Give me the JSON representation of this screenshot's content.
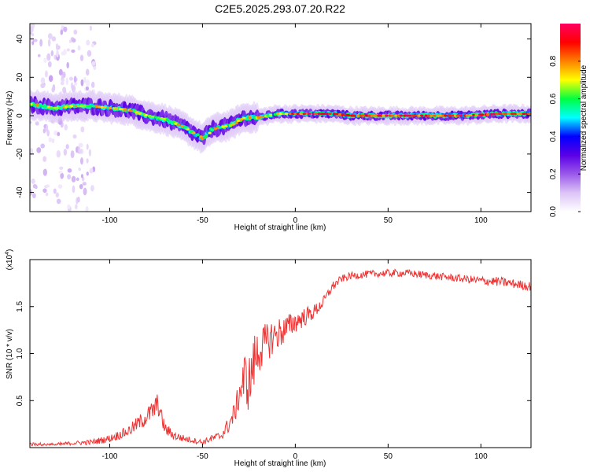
{
  "title": "C2E5.2025.293.07.20.R22",
  "chart_data": [
    {
      "type": "heatmap",
      "xlabel": "Height of straight line (km)",
      "ylabel": "Frequency (Hz)",
      "xlim": [
        -143,
        127
      ],
      "ylim": [
        -50,
        48
      ],
      "x_ticks": [
        -100,
        -50,
        0,
        50,
        100
      ],
      "x_tick_labels": [
        "-100",
        "-50",
        "0",
        "50",
        "100"
      ],
      "y_ticks": [
        -40,
        -20,
        0,
        20,
        40
      ],
      "y_tick_labels": [
        "-40",
        "-20",
        "0",
        "20",
        "40"
      ],
      "colorbar": {
        "label": "Normalized spectral amplitude",
        "range": [
          0,
          1
        ],
        "ticks": [
          0.0,
          0.2,
          0.4,
          0.6,
          0.8
        ],
        "tick_labels": [
          "0.0",
          "0.2",
          "0.4",
          "0.6",
          "0.8"
        ],
        "colormap": [
          "#ffffff",
          "#dcc4f6",
          "#9b59ea",
          "#5a00e6",
          "#0000ff",
          "#00ffff",
          "#00ff40",
          "#ffff00",
          "#ff8000",
          "#ff0000",
          "#ff0060"
        ]
      },
      "ridge": {
        "x": [
          -143,
          -130,
          -120,
          -110,
          -100,
          -90,
          -80,
          -70,
          -60,
          -50,
          -45,
          -40,
          -35,
          -30,
          -27,
          -20,
          -15,
          -10,
          -5,
          0,
          5,
          10,
          20,
          30,
          50,
          70,
          90,
          110,
          127
        ],
        "frequency": [
          6,
          4,
          5,
          5,
          4,
          3,
          0,
          -2,
          -6,
          -12,
          -7,
          -6,
          -5,
          -2,
          -1,
          -1,
          0,
          1,
          1,
          1,
          1,
          1,
          1,
          0,
          0,
          0,
          0,
          1,
          1
        ]
      }
    },
    {
      "type": "line",
      "xlabel": "Height of straight line (km)",
      "ylabel": "SNR (10 * v/v)",
      "multiplier": "(x10",
      "multiplier_exp": "4",
      "multiplier_close": ")",
      "xlim": [
        -143,
        127
      ],
      "ylim": [
        0,
        2.0
      ],
      "x_ticks": [
        -100,
        -50,
        0,
        50,
        100
      ],
      "x_tick_labels": [
        "-100",
        "-50",
        "0",
        "50",
        "100"
      ],
      "y_ticks": [
        0.5,
        1.0,
        1.5
      ],
      "y_tick_labels": [
        "0.5",
        "1.0",
        "1.5"
      ],
      "series": [
        {
          "color": "#ee3333",
          "x": [
            -143,
            -130,
            -120,
            -110,
            -100,
            -90,
            -85,
            -80,
            -76,
            -74,
            -72,
            -70,
            -65,
            -60,
            -55,
            -50,
            -45,
            -40,
            -35,
            -32,
            -30,
            -27,
            -25,
            -22,
            -20,
            -15,
            -12,
            -10,
            -5,
            0,
            5,
            10,
            15,
            20,
            25,
            30,
            40,
            50,
            60,
            70,
            80,
            90,
            100,
            110,
            120,
            127
          ],
          "y": [
            0.04,
            0.03,
            0.05,
            0.06,
            0.1,
            0.18,
            0.26,
            0.34,
            0.42,
            0.48,
            0.32,
            0.2,
            0.13,
            0.1,
            0.08,
            0.06,
            0.1,
            0.13,
            0.28,
            0.42,
            0.62,
            0.78,
            0.7,
            0.95,
            1.05,
            1.15,
            1.2,
            1.22,
            1.28,
            1.35,
            1.4,
            1.45,
            1.55,
            1.72,
            1.8,
            1.83,
            1.85,
            1.86,
            1.86,
            1.84,
            1.82,
            1.8,
            1.78,
            1.77,
            1.74,
            1.72
          ],
          "noise": [
            0.02,
            0.02,
            0.02,
            0.03,
            0.04,
            0.06,
            0.08,
            0.1,
            0.12,
            0.12,
            0.09,
            0.07,
            0.05,
            0.04,
            0.03,
            0.03,
            0.04,
            0.05,
            0.1,
            0.12,
            0.18,
            0.3,
            0.3,
            0.3,
            0.25,
            0.2,
            0.2,
            0.18,
            0.15,
            0.12,
            0.1,
            0.08,
            0.06,
            0.05,
            0.04,
            0.04,
            0.04,
            0.04,
            0.04,
            0.04,
            0.04,
            0.04,
            0.05,
            0.05,
            0.05,
            0.05
          ]
        }
      ]
    }
  ]
}
